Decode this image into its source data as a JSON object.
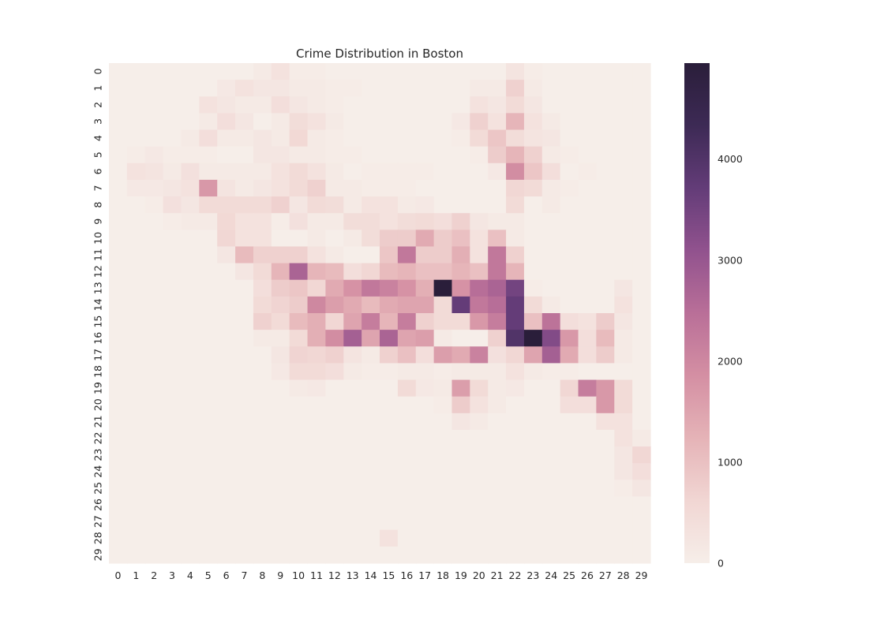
{
  "chart_data": {
    "type": "heatmap",
    "title": "Crime Distribution in Boston",
    "xlabel": "",
    "ylabel": "",
    "x_categories": [
      "0",
      "1",
      "2",
      "3",
      "4",
      "5",
      "6",
      "7",
      "8",
      "9",
      "10",
      "11",
      "12",
      "13",
      "14",
      "15",
      "16",
      "17",
      "18",
      "19",
      "20",
      "21",
      "22",
      "23",
      "24",
      "25",
      "26",
      "27",
      "28",
      "29"
    ],
    "y_categories": [
      "0",
      "1",
      "2",
      "3",
      "4",
      "5",
      "6",
      "7",
      "8",
      "9",
      "10",
      "11",
      "12",
      "13",
      "14",
      "15",
      "16",
      "17",
      "18",
      "19",
      "20",
      "21",
      "22",
      "23",
      "24",
      "25",
      "26",
      "27",
      "28",
      "29"
    ],
    "colorbar": {
      "min": 0,
      "max": 4950,
      "ticks": [
        0,
        1000,
        2000,
        3000,
        4000
      ],
      "tick_labels": [
        "0",
        "1000",
        "2000",
        "3000",
        "4000"
      ],
      "stops": [
        "#f6eee9",
        "#f1d6d3",
        "#e5b3b7",
        "#d48fa3",
        "#b96f98",
        "#91528e",
        "#633c78",
        "#3d2a55",
        "#2a1e3a"
      ]
    },
    "grid": false,
    "legend": "colorbar-right",
    "values": [
      [
        0,
        0,
        0,
        0,
        0,
        0,
        0,
        0,
        100,
        300,
        50,
        50,
        0,
        0,
        0,
        0,
        0,
        0,
        0,
        0,
        0,
        0,
        250,
        50,
        0,
        0,
        0,
        0,
        0,
        0
      ],
      [
        0,
        0,
        0,
        0,
        0,
        0,
        150,
        300,
        200,
        200,
        100,
        100,
        50,
        50,
        0,
        0,
        0,
        0,
        0,
        0,
        100,
        100,
        700,
        100,
        0,
        0,
        0,
        0,
        0,
        0
      ],
      [
        0,
        0,
        0,
        0,
        0,
        300,
        200,
        100,
        100,
        400,
        200,
        100,
        50,
        0,
        0,
        0,
        0,
        0,
        0,
        0,
        300,
        200,
        500,
        200,
        0,
        0,
        0,
        0,
        0,
        0
      ],
      [
        0,
        0,
        0,
        0,
        0,
        100,
        400,
        200,
        0,
        100,
        450,
        300,
        100,
        0,
        0,
        0,
        0,
        0,
        0,
        150,
        700,
        300,
        1200,
        300,
        100,
        0,
        0,
        0,
        0,
        0
      ],
      [
        0,
        0,
        0,
        0,
        100,
        400,
        100,
        100,
        200,
        100,
        550,
        100,
        50,
        0,
        0,
        0,
        0,
        0,
        0,
        50,
        500,
        900,
        450,
        250,
        200,
        0,
        0,
        0,
        0,
        0
      ],
      [
        0,
        50,
        150,
        50,
        50,
        50,
        0,
        0,
        200,
        200,
        100,
        100,
        50,
        50,
        0,
        0,
        0,
        0,
        0,
        0,
        50,
        800,
        1200,
        700,
        100,
        50,
        0,
        0,
        0,
        0
      ],
      [
        0,
        300,
        250,
        100,
        350,
        100,
        100,
        100,
        100,
        300,
        500,
        300,
        100,
        0,
        50,
        50,
        50,
        50,
        0,
        0,
        0,
        150,
        1900,
        900,
        400,
        0,
        50,
        0,
        0,
        0
      ],
      [
        0,
        150,
        150,
        200,
        300,
        1700,
        250,
        100,
        200,
        300,
        500,
        700,
        100,
        100,
        50,
        50,
        50,
        0,
        0,
        0,
        0,
        0,
        600,
        500,
        100,
        50,
        0,
        0,
        0,
        0
      ],
      [
        0,
        0,
        50,
        350,
        200,
        500,
        500,
        500,
        500,
        700,
        200,
        500,
        450,
        100,
        300,
        300,
        100,
        150,
        0,
        0,
        0,
        0,
        500,
        0,
        100,
        0,
        0,
        0,
        0,
        0
      ],
      [
        0,
        0,
        0,
        50,
        100,
        100,
        550,
        300,
        300,
        50,
        350,
        100,
        100,
        450,
        450,
        300,
        450,
        500,
        400,
        700,
        200,
        100,
        100,
        0,
        0,
        0,
        0,
        0,
        0,
        0
      ],
      [
        0,
        0,
        0,
        0,
        0,
        0,
        600,
        300,
        300,
        0,
        0,
        100,
        0,
        100,
        450,
        800,
        800,
        1400,
        800,
        1000,
        300,
        1000,
        100,
        0,
        0,
        0,
        0,
        0,
        0,
        0
      ],
      [
        0,
        0,
        0,
        0,
        0,
        0,
        200,
        1100,
        700,
        700,
        700,
        300,
        100,
        0,
        0,
        900,
        2300,
        800,
        800,
        1300,
        300,
        2300,
        700,
        0,
        0,
        0,
        0,
        0,
        0,
        0
      ],
      [
        0,
        0,
        0,
        0,
        0,
        0,
        0,
        200,
        500,
        1200,
        2700,
        1200,
        1100,
        400,
        600,
        1100,
        1200,
        1000,
        1000,
        1200,
        1000,
        2300,
        1200,
        0,
        0,
        0,
        0,
        0,
        0,
        0
      ],
      [
        0,
        0,
        0,
        0,
        0,
        0,
        0,
        0,
        400,
        800,
        900,
        600,
        1400,
        1800,
        2300,
        2100,
        1800,
        1300,
        4950,
        1800,
        2500,
        2700,
        3500,
        50,
        0,
        0,
        0,
        0,
        200,
        0
      ],
      [
        0,
        0,
        0,
        0,
        0,
        0,
        0,
        0,
        500,
        650,
        800,
        2000,
        1600,
        1400,
        1100,
        1400,
        1500,
        1500,
        500,
        3700,
        2300,
        2500,
        3700,
        500,
        100,
        0,
        0,
        0,
        300,
        0
      ],
      [
        0,
        0,
        0,
        0,
        0,
        0,
        0,
        0,
        700,
        500,
        1100,
        1300,
        600,
        1500,
        2200,
        1200,
        2200,
        700,
        500,
        500,
        1700,
        2200,
        3700,
        1000,
        2400,
        400,
        300,
        800,
        200,
        0
      ],
      [
        0,
        0,
        0,
        0,
        0,
        0,
        0,
        0,
        100,
        100,
        500,
        1300,
        1900,
        2800,
        1500,
        2700,
        1500,
        1600,
        100,
        0,
        0,
        700,
        4000,
        4950,
        3300,
        1700,
        400,
        1100,
        100,
        0
      ],
      [
        0,
        0,
        0,
        0,
        0,
        0,
        0,
        0,
        0,
        200,
        650,
        600,
        700,
        250,
        100,
        700,
        1000,
        400,
        1600,
        1400,
        2100,
        350,
        600,
        1500,
        2800,
        1400,
        400,
        800,
        100,
        0
      ],
      [
        0,
        0,
        0,
        0,
        0,
        0,
        0,
        0,
        0,
        150,
        500,
        500,
        400,
        100,
        50,
        50,
        100,
        100,
        50,
        100,
        100,
        100,
        300,
        100,
        50,
        50,
        0,
        0,
        0,
        0
      ],
      [
        0,
        0,
        0,
        0,
        0,
        0,
        0,
        0,
        0,
        0,
        100,
        150,
        0,
        0,
        0,
        0,
        500,
        150,
        100,
        1600,
        500,
        100,
        150,
        0,
        0,
        600,
        2200,
        1700,
        500,
        0
      ],
      [
        0,
        0,
        0,
        0,
        0,
        0,
        0,
        0,
        0,
        0,
        0,
        0,
        0,
        0,
        0,
        0,
        0,
        0,
        50,
        800,
        300,
        100,
        0,
        0,
        0,
        400,
        400,
        1700,
        500,
        0
      ],
      [
        0,
        0,
        0,
        0,
        0,
        0,
        0,
        0,
        0,
        0,
        0,
        0,
        0,
        0,
        0,
        0,
        0,
        0,
        0,
        200,
        100,
        0,
        0,
        0,
        0,
        0,
        0,
        300,
        300,
        0
      ],
      [
        0,
        0,
        0,
        0,
        0,
        0,
        0,
        0,
        0,
        0,
        0,
        0,
        0,
        0,
        0,
        0,
        0,
        0,
        0,
        0,
        0,
        0,
        0,
        0,
        0,
        0,
        0,
        0,
        300,
        100
      ],
      [
        0,
        0,
        0,
        0,
        0,
        0,
        0,
        0,
        0,
        0,
        0,
        0,
        0,
        0,
        0,
        0,
        0,
        0,
        0,
        0,
        0,
        0,
        0,
        0,
        0,
        0,
        0,
        0,
        200,
        600
      ],
      [
        0,
        0,
        0,
        0,
        0,
        0,
        0,
        0,
        0,
        0,
        0,
        0,
        0,
        0,
        0,
        0,
        0,
        0,
        0,
        0,
        0,
        0,
        0,
        0,
        0,
        0,
        0,
        0,
        200,
        400
      ],
      [
        0,
        0,
        0,
        0,
        0,
        0,
        0,
        0,
        0,
        0,
        0,
        0,
        0,
        0,
        0,
        0,
        0,
        0,
        0,
        0,
        0,
        0,
        0,
        0,
        0,
        0,
        0,
        0,
        50,
        200
      ],
      [
        0,
        0,
        0,
        0,
        0,
        0,
        0,
        0,
        0,
        0,
        0,
        0,
        0,
        0,
        0,
        0,
        0,
        0,
        0,
        0,
        0,
        0,
        0,
        0,
        0,
        0,
        0,
        0,
        0,
        0
      ],
      [
        0,
        0,
        0,
        0,
        0,
        0,
        0,
        0,
        0,
        0,
        0,
        0,
        0,
        0,
        0,
        0,
        0,
        0,
        0,
        0,
        0,
        0,
        0,
        0,
        0,
        0,
        0,
        0,
        0,
        0
      ],
      [
        0,
        0,
        0,
        0,
        0,
        0,
        0,
        0,
        0,
        0,
        0,
        0,
        0,
        0,
        0,
        300,
        0,
        0,
        0,
        0,
        0,
        0,
        0,
        0,
        0,
        0,
        0,
        0,
        0,
        0
      ],
      [
        0,
        0,
        0,
        0,
        0,
        0,
        0,
        0,
        0,
        0,
        0,
        0,
        0,
        0,
        0,
        0,
        0,
        0,
        0,
        0,
        0,
        0,
        0,
        0,
        0,
        0,
        0,
        0,
        0,
        0
      ]
    ]
  }
}
